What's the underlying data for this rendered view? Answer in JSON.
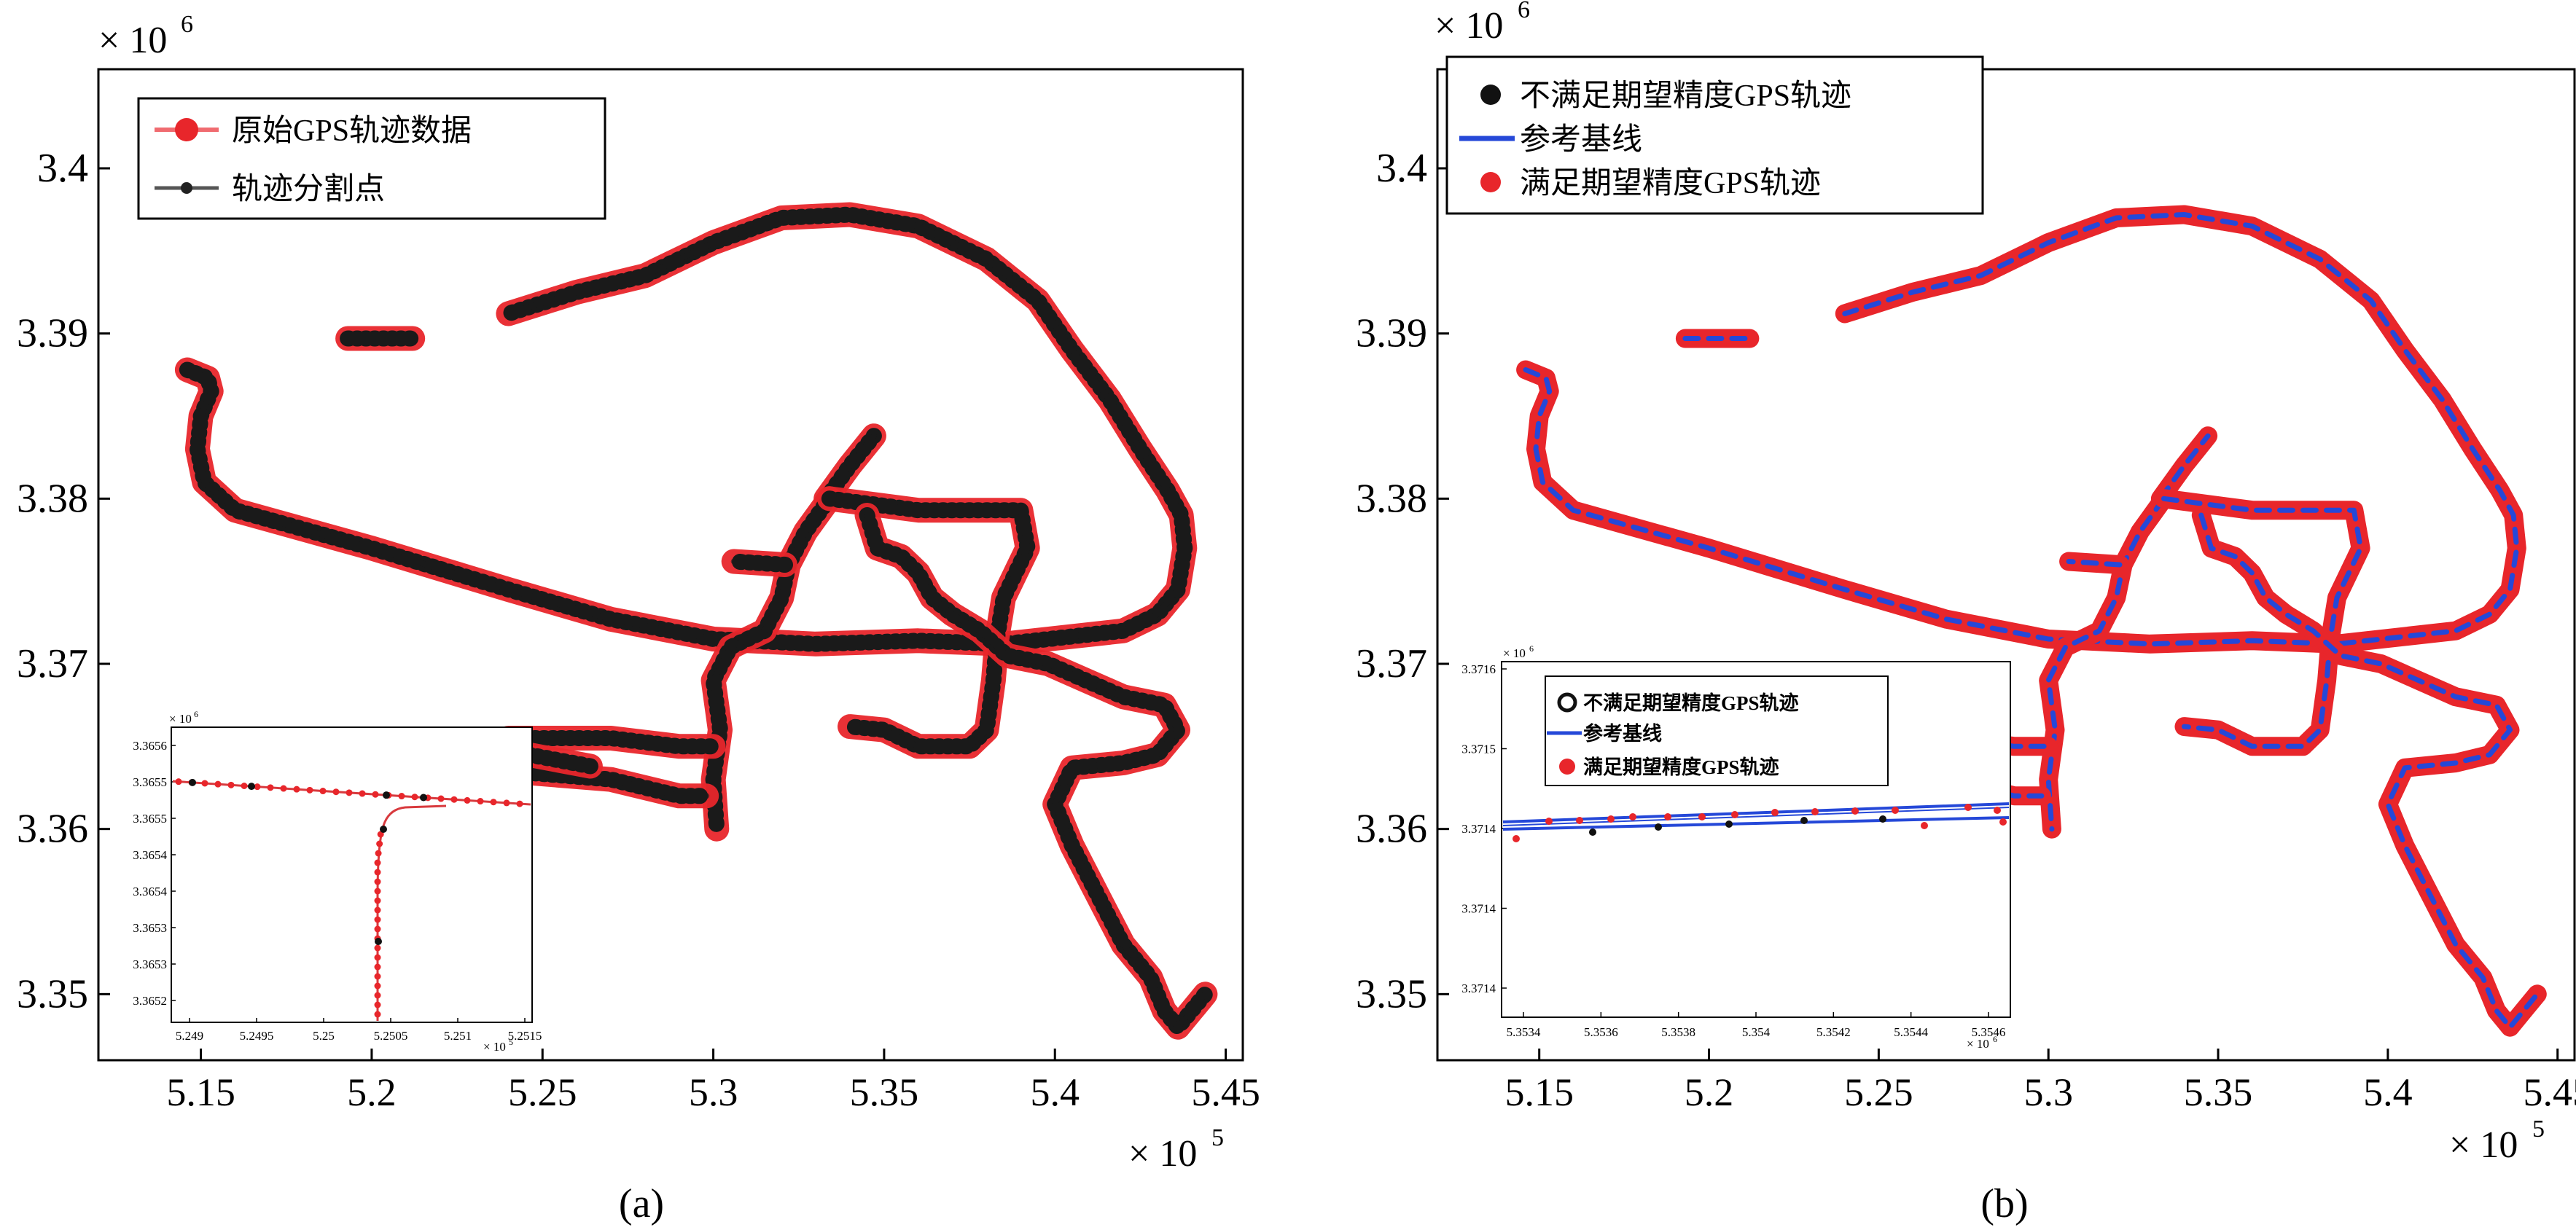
{
  "chart_data": [
    {
      "type": "line",
      "panel": "(a)",
      "x_exponent": "× 10^5",
      "y_exponent": "× 10^6",
      "xlim": [
        5.12,
        5.455
      ],
      "ylim": [
        3.346,
        3.406
      ],
      "x_ticks": [
        "5.15",
        "5.2",
        "5.25",
        "5.3",
        "5.35",
        "5.4",
        "5.45"
      ],
      "y_ticks": [
        "3.35",
        "3.36",
        "3.37",
        "3.38",
        "3.39",
        "3.4"
      ],
      "legend": [
        "原始GPS轨迹数据",
        "轨迹分割点"
      ],
      "legend_position": "top-left",
      "series": [
        {
          "name": "原始GPS轨迹数据",
          "color": "#e8262b"
        },
        {
          "name": "轨迹分割点",
          "color": "#222222"
        }
      ],
      "tracks": [
        [
          [
            5.146,
            3.3878
          ],
          [
            5.152,
            3.3873
          ],
          [
            5.153,
            3.3865
          ],
          [
            5.15,
            3.385
          ],
          [
            5.149,
            3.383
          ],
          [
            5.151,
            3.381
          ],
          [
            5.16,
            3.3793
          ],
          [
            5.2,
            3.377
          ],
          [
            5.24,
            3.3745
          ],
          [
            5.27,
            3.3727
          ],
          [
            5.3,
            3.3715
          ],
          [
            5.33,
            3.3712
          ],
          [
            5.36,
            3.3714
          ],
          [
            5.385,
            3.3712
          ],
          [
            5.42,
            3.372
          ],
          [
            5.43,
            3.373
          ],
          [
            5.436,
            3.3745
          ],
          [
            5.438,
            3.377
          ],
          [
            5.437,
            3.379
          ],
          [
            5.433,
            3.3805
          ],
          [
            5.425,
            3.383
          ],
          [
            5.416,
            3.386
          ],
          [
            5.405,
            3.389
          ],
          [
            5.395,
            3.392
          ],
          [
            5.38,
            3.3945
          ],
          [
            5.36,
            3.3965
          ],
          [
            5.34,
            3.3972
          ],
          [
            5.32,
            3.397
          ],
          [
            5.3,
            3.3955
          ],
          [
            5.28,
            3.3935
          ],
          [
            5.26,
            3.3925
          ],
          [
            5.24,
            3.3912
          ]
        ],
        [
          [
            5.193,
            3.3897
          ],
          [
            5.212,
            3.3897
          ]
        ],
        [
          [
            5.333,
            3.38
          ],
          [
            5.34,
            3.382
          ],
          [
            5.347,
            3.3838
          ]
        ],
        [
          [
            5.334,
            3.38
          ],
          [
            5.327,
            3.378
          ],
          [
            5.322,
            3.376
          ],
          [
            5.32,
            3.374
          ],
          [
            5.315,
            3.372
          ],
          [
            5.305,
            3.371
          ],
          [
            5.3,
            3.369
          ],
          [
            5.302,
            3.366
          ],
          [
            5.3,
            3.363
          ],
          [
            5.301,
            3.36
          ]
        ],
        [
          [
            5.321,
            3.376
          ],
          [
            5.306,
            3.3762
          ]
        ],
        [
          [
            5.334,
            3.38
          ],
          [
            5.36,
            3.3793
          ],
          [
            5.39,
            3.3793
          ],
          [
            5.392,
            3.377
          ],
          [
            5.385,
            3.374
          ],
          [
            5.383,
            3.3715
          ],
          [
            5.382,
            3.369
          ],
          [
            5.38,
            3.366
          ],
          [
            5.375,
            3.365
          ],
          [
            5.36,
            3.365
          ],
          [
            5.35,
            3.366
          ],
          [
            5.34,
            3.3662
          ]
        ],
        [
          [
            5.345,
            3.379
          ],
          [
            5.348,
            3.377
          ],
          [
            5.355,
            3.3765
          ],
          [
            5.36,
            3.3755
          ],
          [
            5.364,
            3.374
          ],
          [
            5.37,
            3.373
          ],
          [
            5.378,
            3.372
          ],
          [
            5.386,
            3.3705
          ],
          [
            5.398,
            3.37
          ],
          [
            5.409,
            3.369
          ],
          [
            5.42,
            3.368
          ],
          [
            5.432,
            3.3675
          ],
          [
            5.436,
            3.366
          ],
          [
            5.43,
            3.3645
          ],
          [
            5.42,
            3.364
          ],
          [
            5.405,
            3.3637
          ],
          [
            5.4,
            3.3615
          ],
          [
            5.405,
            3.359
          ],
          [
            5.41,
            3.357
          ],
          [
            5.415,
            3.355
          ],
          [
            5.42,
            3.353
          ],
          [
            5.428,
            3.351
          ],
          [
            5.432,
            3.349
          ],
          [
            5.436,
            3.348
          ],
          [
            5.44,
            3.349
          ],
          [
            5.444,
            3.35
          ]
        ],
        [
          [
            5.24,
            3.3655
          ],
          [
            5.27,
            3.3655
          ],
          [
            5.29,
            3.365
          ],
          [
            5.3,
            3.365
          ]
        ],
        [
          [
            5.24,
            3.3635
          ],
          [
            5.27,
            3.363
          ],
          [
            5.29,
            3.362
          ],
          [
            5.298,
            3.362
          ]
        ],
        [
          [
            5.246,
            3.3645
          ],
          [
            5.264,
            3.3638
          ]
        ]
      ],
      "inset": {
        "x_exponent": "× 10^5",
        "y_exponent": "× 10^6",
        "xlim": [
          5.2488,
          5.2515
        ],
        "x_ticks": [
          "5.249",
          "5.2495",
          "5.25",
          "5.2505",
          "5.251",
          "5.2515"
        ],
        "y_ticks": [
          "3.3656",
          "3.3655",
          "3.3655",
          "3.3654",
          "3.3654",
          "3.3653",
          "3.3653",
          "3.3652"
        ]
      }
    },
    {
      "type": "scatter",
      "panel": "(b)",
      "x_exponent": "× 10^5",
      "y_exponent": "× 10^6",
      "xlim": [
        5.12,
        5.455
      ],
      "ylim": [
        3.346,
        3.406
      ],
      "x_ticks": [
        "5.15",
        "5.2",
        "5.25",
        "5.3",
        "5.35",
        "5.4",
        "5.45"
      ],
      "y_ticks": [
        "3.35",
        "3.36",
        "3.37",
        "3.38",
        "3.39",
        "3.4"
      ],
      "legend": [
        "不满足期望精度GPS轨迹",
        "参考基线",
        "满足期望精度GPS轨迹"
      ],
      "legend_position": "top-left",
      "series": [
        {
          "name": "不满足期望精度GPS轨迹",
          "color": "#111111"
        },
        {
          "name": "参考基线",
          "color": "#2548d8"
        },
        {
          "name": "满足期望精度GPS轨迹",
          "color": "#e8262b"
        }
      ],
      "inset": {
        "x_exponent": "× 10^6",
        "y_exponent": "× 10^6",
        "x_ticks": [
          "5.3534",
          "5.3536",
          "5.3538",
          "5.354",
          "5.3542",
          "5.3544",
          "5.3546"
        ],
        "y_ticks": [
          "3.3716",
          "3.3715",
          "3.3714",
          "3.3714",
          "3.3714"
        ],
        "legend": [
          "不满足期望精度GPS轨迹",
          "参考基线",
          "满足期望精度GPS轨迹"
        ]
      }
    }
  ]
}
